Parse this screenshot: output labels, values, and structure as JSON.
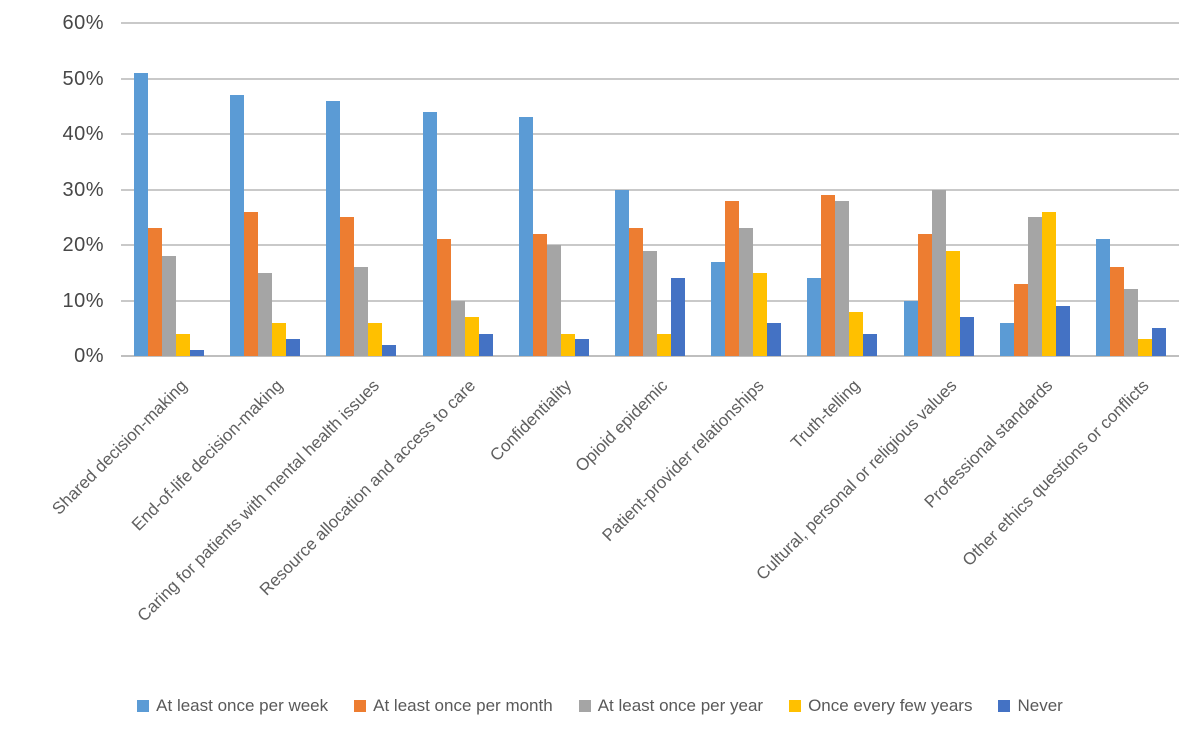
{
  "chart_data": {
    "type": "bar",
    "categories": [
      "Shared decision-making",
      "End-of-life decision-making",
      "Caring for patients with mental health issues",
      "Resource allocation and access to care",
      "Confidentiality",
      "Opioid epidemic",
      "Patient-provider relationships",
      "Truth-telling",
      "Cultural, personal or religious values",
      "Professional standards",
      "Other ethics questions or conflicts"
    ],
    "series": [
      {
        "name": "At least once per week",
        "color": "#5B9BD5",
        "values": [
          51,
          47,
          46,
          44,
          43,
          30,
          17,
          14,
          10,
          6,
          21
        ]
      },
      {
        "name": "At least once per month",
        "color": "#ED7D31",
        "values": [
          23,
          26,
          25,
          21,
          22,
          23,
          28,
          29,
          22,
          13,
          16
        ]
      },
      {
        "name": "At least once per year",
        "color": "#A5A5A5",
        "values": [
          18,
          15,
          16,
          10,
          20,
          19,
          23,
          28,
          30,
          25,
          12
        ]
      },
      {
        "name": "Once every few years",
        "color": "#FFC000",
        "values": [
          4,
          6,
          6,
          7,
          4,
          4,
          15,
          8,
          19,
          26,
          3
        ]
      },
      {
        "name": "Never",
        "color": "#4472C4",
        "values": [
          1,
          3,
          2,
          4,
          3,
          14,
          6,
          4,
          7,
          9,
          5
        ]
      }
    ],
    "ylim": [
      0,
      60
    ],
    "ytick_step": 10,
    "ytick_labels": [
      "0%",
      "10%",
      "20%",
      "30%",
      "40%",
      "50%",
      "60%"
    ],
    "xlabel": "",
    "ylabel": "",
    "grid": true,
    "legend_position": "bottom",
    "colors": {
      "gridline": "#C9C9C9",
      "axis_line": "#BFBFBF",
      "tick_text": "#474747",
      "category_text": "#5F5F5F",
      "legend_text": "#595959",
      "background": "#FFFFFF"
    }
  }
}
